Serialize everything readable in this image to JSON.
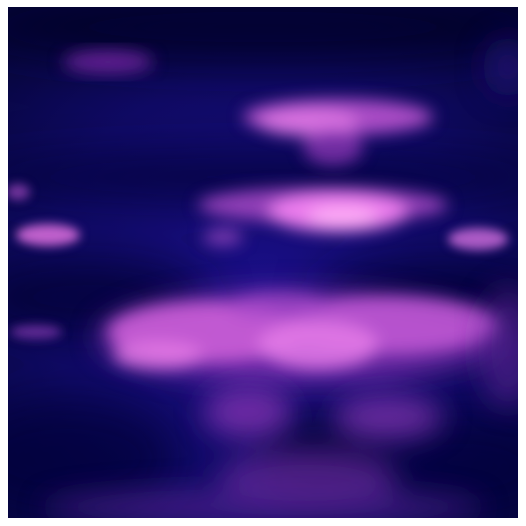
{
  "image": {
    "subject": "abstract-symmetric-purple-blobs",
    "colors": {
      "background_dark": "#07063f",
      "background_mid": "#1a1080",
      "blob_pink": "#e06ae6",
      "blob_bright": "#ff9cf5",
      "blob_magenta": "#b53fc4",
      "shadow_navy": "#050325",
      "frame": "#ffffff"
    }
  }
}
